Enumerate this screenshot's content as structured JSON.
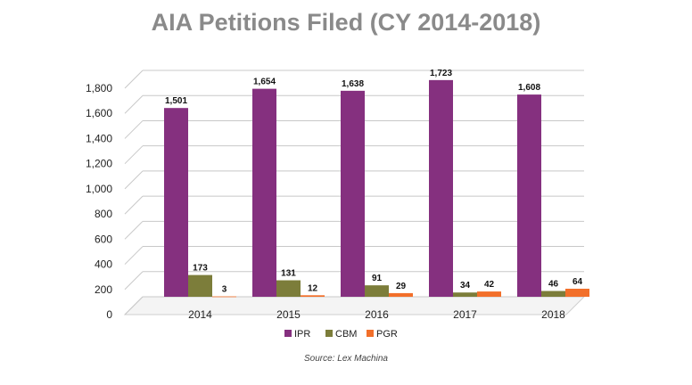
{
  "chart_data": {
    "type": "bar",
    "title": "AIA Petitions Filed (CY 2014-2018)",
    "categories": [
      "2014",
      "2015",
      "2016",
      "2017",
      "2018"
    ],
    "series": [
      {
        "name": "IPR",
        "color": "#85307f",
        "values": [
          1501,
          1654,
          1638,
          1723,
          1608
        ],
        "labels": [
          "1,501",
          "1,654",
          "1,638",
          "1,723",
          "1,608"
        ]
      },
      {
        "name": "CBM",
        "color": "#7c7d3a",
        "values": [
          173,
          131,
          91,
          34,
          46
        ],
        "labels": [
          "173",
          "131",
          "91",
          "34",
          "46"
        ]
      },
      {
        "name": "PGR",
        "color": "#f26f2a",
        "values": [
          3,
          12,
          29,
          42,
          64
        ],
        "labels": [
          "3",
          "12",
          "29",
          "42",
          "64"
        ]
      }
    ],
    "yticks": [
      "0",
      "200",
      "400",
      "600",
      "800",
      "1,000",
      "1,200",
      "1,400",
      "1,600",
      "1,800"
    ],
    "ylim": [
      0,
      1800
    ],
    "legend": "bottom",
    "source": "Source: Lex Machina"
  }
}
